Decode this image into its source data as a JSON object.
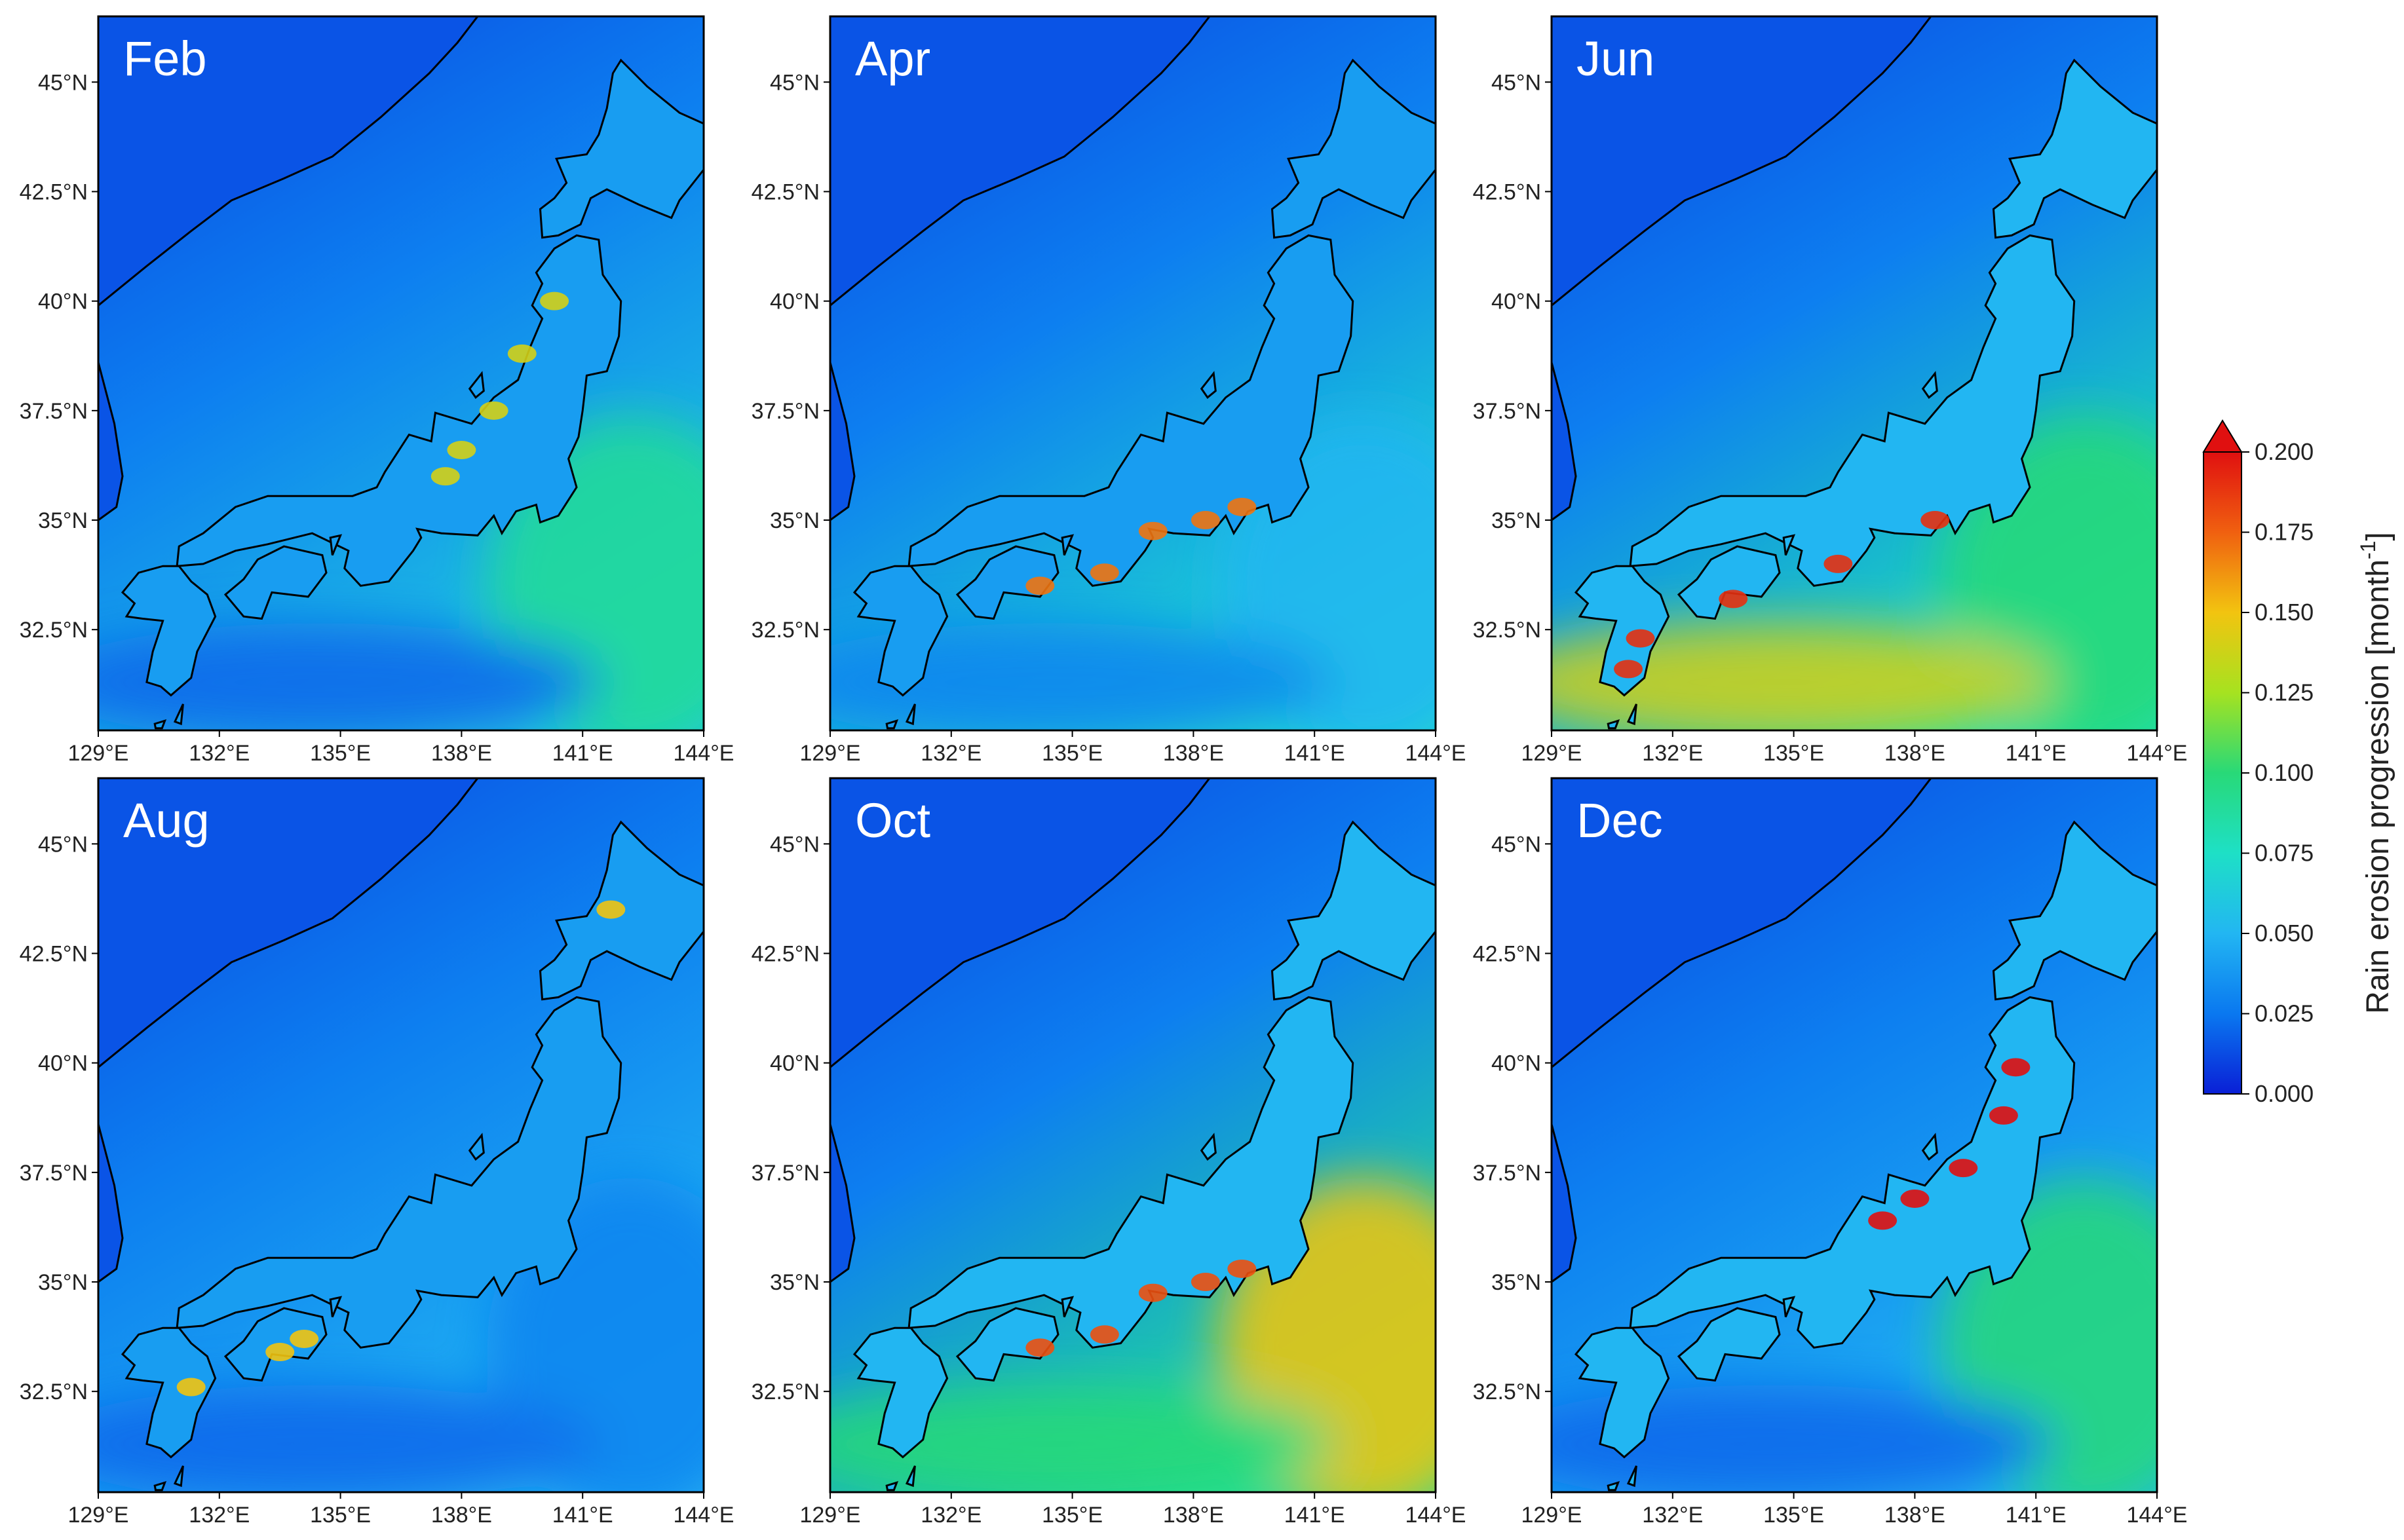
{
  "panels": [
    {
      "month": "Feb",
      "intensity": {
        "sea_south": 0.06,
        "kuroshio": 0.02,
        "east_patch": 0.09,
        "land": 0.04,
        "hotspots": 0.14,
        "hot_region": "central"
      }
    },
    {
      "month": "Apr",
      "intensity": {
        "sea_south": 0.07,
        "kuroshio": 0.03,
        "east_patch": 0.05,
        "land": 0.04,
        "hotspots": 0.17,
        "hot_region": "pacific-coast"
      }
    },
    {
      "month": "Jun",
      "intensity": {
        "sea_south": 0.08,
        "kuroshio": 0.14,
        "east_patch": 0.1,
        "land": 0.05,
        "hotspots": 0.19,
        "hot_region": "kyushu-shikoku"
      }
    },
    {
      "month": "Aug",
      "intensity": {
        "sea_south": 0.05,
        "kuroshio": 0.02,
        "east_patch": 0.03,
        "land": 0.04,
        "hotspots": 0.15,
        "hot_region": "shikoku"
      }
    },
    {
      "month": "Oct",
      "intensity": {
        "sea_south": 0.09,
        "kuroshio": 0.1,
        "east_patch": 0.15,
        "land": 0.05,
        "hotspots": 0.18,
        "hot_region": "pacific-coast"
      }
    },
    {
      "month": "Dec",
      "intensity": {
        "sea_south": 0.05,
        "kuroshio": 0.02,
        "east_patch": 0.1,
        "land": 0.05,
        "hotspots": 0.2,
        "hot_region": "sea-of-japan-coast"
      }
    }
  ],
  "axes": {
    "lat_ticks": [
      "45°N",
      "42.5°N",
      "40°N",
      "37.5°N",
      "35°N",
      "32.5°N"
    ],
    "lat_values": [
      45,
      42.5,
      40,
      37.5,
      35,
      32.5
    ],
    "lon_ticks": [
      "129°E",
      "132°E",
      "135°E",
      "138°E",
      "141°E",
      "144°E"
    ],
    "lon_values": [
      129,
      132,
      135,
      138,
      141,
      144
    ],
    "lon_range": [
      129,
      144
    ],
    "lat_range": [
      30.2,
      46.5
    ]
  },
  "colorbar": {
    "title": "Rain erosion progression [month",
    "title_superscript": "-1",
    "title_suffix": "]",
    "tick_labels": [
      "0.200",
      "0.175",
      "0.150",
      "0.125",
      "0.100",
      "0.075",
      "0.050",
      "0.025",
      "0.000"
    ],
    "min": 0.0,
    "max": 0.2,
    "extend": "max",
    "colormap": "jet"
  },
  "colors": {
    "cmap_stops": [
      "#0a1fd6",
      "#0a78f0",
      "#22b6f2",
      "#1ee0c6",
      "#28d978",
      "#a6e220",
      "#f2c410",
      "#f06010",
      "#e01010"
    ],
    "coastline": "#000000",
    "frame": "#000000"
  }
}
